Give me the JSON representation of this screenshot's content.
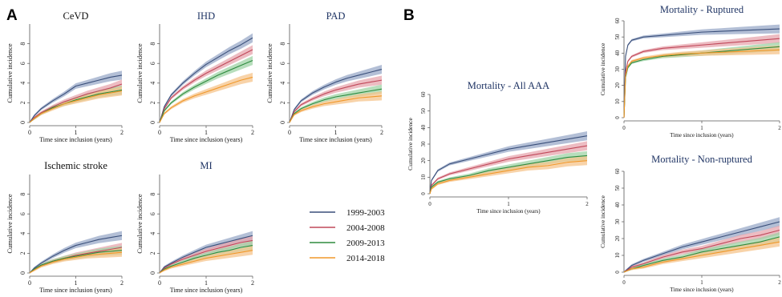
{
  "panel_labels": [
    "A",
    "B"
  ],
  "legend": [
    {
      "label": "1999-2003",
      "color": "#3a4f7a"
    },
    {
      "label": "2004-2008",
      "color": "#c0485a"
    },
    {
      "label": "2009-2013",
      "color": "#2e8b3f"
    },
    {
      "label": "2014-2018",
      "color": "#f0982a"
    }
  ],
  "band_colors": [
    "#9aaac8",
    "#e7a6ae",
    "#9fd3a5",
    "#f6c48c"
  ],
  "title_color": "#1f3464",
  "chart_data": [
    {
      "id": "cevd",
      "type": "line",
      "title": "CeVD",
      "xlabel": "Time since inclusion (years)",
      "ylabel": "Cumulative incidence",
      "xlim": [
        0,
        2
      ],
      "ylim": [
        0,
        10
      ],
      "yticks": [
        0,
        2,
        4,
        6,
        8
      ],
      "xticks": [
        0,
        1,
        2
      ],
      "x": [
        0,
        0.1,
        0.25,
        0.5,
        0.75,
        1.0,
        1.25,
        1.5,
        1.75,
        2.0
      ],
      "series": [
        {
          "name": "1999-2003",
          "values": [
            0,
            0.7,
            1.4,
            2.2,
            2.9,
            3.7,
            4.0,
            4.3,
            4.6,
            4.8
          ]
        },
        {
          "name": "2004-2008",
          "values": [
            0,
            0.5,
            1.0,
            1.6,
            2.1,
            2.5,
            2.9,
            3.2,
            3.5,
            3.9
          ]
        },
        {
          "name": "2009-2013",
          "values": [
            0,
            0.4,
            0.9,
            1.5,
            1.9,
            2.3,
            2.6,
            2.9,
            3.1,
            3.3
          ]
        },
        {
          "name": "2014-2018",
          "values": [
            0,
            0.4,
            0.9,
            1.4,
            1.9,
            2.2,
            2.5,
            2.8,
            3.0,
            3.2
          ]
        }
      ]
    },
    {
      "id": "ihd",
      "type": "line",
      "title": "IHD",
      "xlabel": "Time since inclusion (years)",
      "ylabel": "Cumulative incidence",
      "xlim": [
        0,
        2
      ],
      "ylim": [
        0,
        10
      ],
      "yticks": [
        0,
        2,
        4,
        6,
        8
      ],
      "xticks": [
        0,
        1,
        2
      ],
      "x": [
        0,
        0.1,
        0.25,
        0.5,
        0.75,
        1.0,
        1.25,
        1.5,
        1.75,
        2.0
      ],
      "series": [
        {
          "name": "1999-2003",
          "values": [
            0,
            1.6,
            2.8,
            4.0,
            5.0,
            5.9,
            6.6,
            7.3,
            7.9,
            8.6
          ]
        },
        {
          "name": "2004-2008",
          "values": [
            0,
            1.4,
            2.5,
            3.5,
            4.3,
            5.0,
            5.6,
            6.2,
            6.8,
            7.4
          ]
        },
        {
          "name": "2009-2013",
          "values": [
            0,
            1.2,
            2.0,
            2.9,
            3.6,
            4.2,
            4.8,
            5.3,
            5.8,
            6.3
          ]
        },
        {
          "name": "2014-2018",
          "values": [
            0,
            0.9,
            1.5,
            2.2,
            2.7,
            3.1,
            3.5,
            3.9,
            4.3,
            4.6
          ]
        }
      ]
    },
    {
      "id": "pad",
      "type": "line",
      "title": "PAD",
      "xlabel": "Time since inclusion (years)",
      "ylabel": "Cumulative incidence",
      "xlim": [
        0,
        2
      ],
      "ylim": [
        0,
        10
      ],
      "yticks": [
        0,
        2,
        4,
        6,
        8
      ],
      "xticks": [
        0,
        1,
        2
      ],
      "x": [
        0,
        0.1,
        0.25,
        0.5,
        0.75,
        1.0,
        1.25,
        1.5,
        1.75,
        2.0
      ],
      "series": [
        {
          "name": "1999-2003",
          "values": [
            0,
            1.3,
            2.2,
            3.0,
            3.6,
            4.1,
            4.5,
            4.8,
            5.1,
            5.4
          ]
        },
        {
          "name": "2004-2008",
          "values": [
            0,
            1.1,
            1.8,
            2.4,
            2.9,
            3.3,
            3.6,
            3.9,
            4.1,
            4.3
          ]
        },
        {
          "name": "2009-2013",
          "values": [
            0,
            0.9,
            1.4,
            1.9,
            2.3,
            2.6,
            2.8,
            3.0,
            3.2,
            3.4
          ]
        },
        {
          "name": "2014-2018",
          "values": [
            0,
            0.8,
            1.2,
            1.6,
            1.9,
            2.1,
            2.3,
            2.5,
            2.6,
            2.7
          ]
        }
      ]
    },
    {
      "id": "stroke",
      "type": "line",
      "title": "Ischemic stroke",
      "xlabel": "Time since inclusion (years)",
      "ylabel": "Cumulative incidence",
      "xlim": [
        0,
        2
      ],
      "ylim": [
        0,
        10
      ],
      "yticks": [
        0,
        2,
        4,
        6,
        8
      ],
      "xticks": [
        0,
        1,
        2
      ],
      "x": [
        0,
        0.1,
        0.25,
        0.5,
        0.75,
        1.0,
        1.25,
        1.5,
        1.75,
        2.0
      ],
      "series": [
        {
          "name": "1999-2003",
          "values": [
            0,
            0.5,
            1.0,
            1.7,
            2.3,
            2.8,
            3.1,
            3.4,
            3.6,
            3.8
          ]
        },
        {
          "name": "2004-2008",
          "values": [
            0,
            0.4,
            0.8,
            1.2,
            1.5,
            1.8,
            2.0,
            2.2,
            2.4,
            2.6
          ]
        },
        {
          "name": "2009-2013",
          "values": [
            0,
            0.4,
            0.8,
            1.2,
            1.5,
            1.7,
            1.9,
            2.1,
            2.2,
            2.3
          ]
        },
        {
          "name": "2014-2018",
          "values": [
            0,
            0.3,
            0.7,
            1.1,
            1.4,
            1.6,
            1.8,
            1.9,
            2.0,
            2.1
          ]
        }
      ]
    },
    {
      "id": "mi",
      "type": "line",
      "title": "MI",
      "xlabel": "Time since inclusion (years)",
      "ylabel": "Cumulative incidence",
      "xlim": [
        0,
        2
      ],
      "ylim": [
        0,
        10
      ],
      "yticks": [
        0,
        2,
        4,
        6,
        8
      ],
      "xticks": [
        0,
        1,
        2
      ],
      "x": [
        0,
        0.1,
        0.25,
        0.5,
        0.75,
        1.0,
        1.25,
        1.5,
        1.75,
        2.0
      ],
      "series": [
        {
          "name": "1999-2003",
          "values": [
            0,
            0.6,
            1.0,
            1.6,
            2.1,
            2.6,
            2.9,
            3.2,
            3.5,
            3.8
          ]
        },
        {
          "name": "2004-2008",
          "values": [
            0,
            0.5,
            0.9,
            1.4,
            1.8,
            2.2,
            2.5,
            2.8,
            3.1,
            3.3
          ]
        },
        {
          "name": "2009-2013",
          "values": [
            0,
            0.4,
            0.7,
            1.1,
            1.5,
            1.8,
            2.1,
            2.3,
            2.6,
            2.8
          ]
        },
        {
          "name": "2014-2018",
          "values": [
            0,
            0.3,
            0.6,
            0.9,
            1.2,
            1.5,
            1.7,
            1.9,
            2.1,
            2.3
          ]
        }
      ]
    },
    {
      "id": "all_aaa",
      "type": "line",
      "title": "Mortality - All AAA",
      "xlabel": "Time since inclusion (years)",
      "ylabel": "Cumulative incidence",
      "xlim": [
        0,
        2
      ],
      "ylim": [
        0,
        60
      ],
      "yticks": [
        0,
        10,
        20,
        30,
        40,
        50,
        60
      ],
      "xticks": [
        0,
        1,
        2
      ],
      "x": [
        0,
        0.02,
        0.1,
        0.25,
        0.5,
        0.75,
        1.0,
        1.25,
        1.5,
        1.75,
        2.0
      ],
      "series": [
        {
          "name": "1999-2003",
          "values": [
            0,
            8,
            14,
            18,
            21,
            24,
            27,
            29,
            31,
            33,
            35
          ]
        },
        {
          "name": "2004-2008",
          "values": [
            0,
            5,
            9,
            12,
            15,
            18,
            21,
            23,
            25,
            27,
            29
          ]
        },
        {
          "name": "2009-2013",
          "values": [
            0,
            4,
            7,
            9,
            11,
            14,
            16,
            18,
            20,
            22,
            23
          ]
        },
        {
          "name": "2014-2018",
          "values": [
            0,
            3,
            6,
            8,
            10,
            12,
            14,
            16,
            17,
            19,
            20
          ]
        }
      ]
    },
    {
      "id": "ruptured",
      "type": "line",
      "title": "Mortality - Ruptured",
      "xlabel": "Time since inclusion (years)",
      "ylabel": "Cumulative incidence",
      "xlim": [
        0,
        2
      ],
      "ylim": [
        0,
        60
      ],
      "yticks": [
        0,
        10,
        20,
        30,
        40,
        50,
        60
      ],
      "xticks": [
        0,
        1,
        2
      ],
      "x": [
        0,
        0.02,
        0.05,
        0.1,
        0.25,
        0.5,
        0.75,
        1.0,
        1.25,
        1.5,
        1.75,
        2.0
      ],
      "series": [
        {
          "name": "1999-2003",
          "values": [
            0,
            38,
            45,
            48,
            50,
            51,
            52,
            53,
            53.5,
            54,
            54.5,
            55
          ]
        },
        {
          "name": "2004-2008",
          "values": [
            0,
            28,
            35,
            38,
            41,
            43,
            44,
            45,
            46,
            47,
            48,
            49
          ]
        },
        {
          "name": "2009-2013",
          "values": [
            0,
            25,
            31,
            34,
            36,
            38,
            39,
            40,
            41,
            42,
            43,
            44
          ]
        },
        {
          "name": "2014-2018",
          "values": [
            0,
            26,
            32,
            35,
            37,
            38.5,
            39.5,
            40,
            40.5,
            41,
            41.5,
            42
          ]
        }
      ]
    },
    {
      "id": "nonruptured",
      "type": "line",
      "title": "Mortality - Non-ruptured",
      "xlabel": "Time since inclusion (years)",
      "ylabel": "Cumulative incidence",
      "xlim": [
        0,
        2
      ],
      "ylim": [
        0,
        60
      ],
      "yticks": [
        0,
        10,
        20,
        30,
        40,
        50,
        60
      ],
      "xticks": [
        0,
        1,
        2
      ],
      "x": [
        0,
        0.1,
        0.25,
        0.5,
        0.75,
        1.0,
        1.25,
        1.5,
        1.75,
        2.0
      ],
      "series": [
        {
          "name": "1999-2003",
          "values": [
            0,
            4,
            7,
            11,
            15,
            18,
            21,
            24,
            27,
            30
          ]
        },
        {
          "name": "2004-2008",
          "values": [
            0,
            3,
            5,
            9,
            12,
            14,
            17,
            20,
            22,
            25
          ]
        },
        {
          "name": "2009-2013",
          "values": [
            0,
            2,
            4,
            7,
            9,
            12,
            14,
            16,
            18,
            21
          ]
        },
        {
          "name": "2014-2018",
          "values": [
            0,
            2,
            3,
            6,
            8,
            10,
            12,
            14,
            16,
            18
          ]
        }
      ]
    }
  ]
}
